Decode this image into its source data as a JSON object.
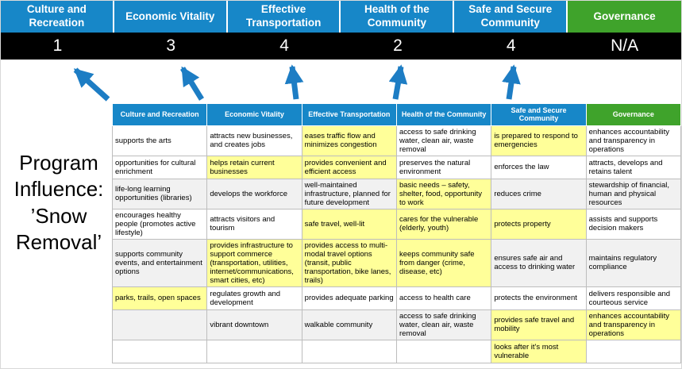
{
  "colors": {
    "blue": "#1787C8",
    "green": "#3FA32B",
    "highlight": "#FFFF99",
    "score_band_bg": "#000000",
    "arrow": "#1D7DC4",
    "cell_border": "#BDBDBD"
  },
  "title": {
    "text": "Program\nInfluence:\n’Snow\nRemoval’"
  },
  "band": {
    "categories": [
      {
        "label": "Culture and Recreation",
        "score": "1",
        "color": "blue"
      },
      {
        "label": "Economic Vitality",
        "score": "3",
        "color": "blue"
      },
      {
        "label": "Effective Transportation",
        "score": "4",
        "color": "blue"
      },
      {
        "label": "Health of the Community",
        "score": "2",
        "color": "blue"
      },
      {
        "label": "Safe and Secure Community",
        "score": "4",
        "color": "blue"
      },
      {
        "label": "Governance",
        "score": "N/A",
        "color": "green"
      }
    ]
  },
  "matrix": {
    "headers": [
      {
        "label": "Culture and Recreation",
        "color": "blue"
      },
      {
        "label": "Economic Vitality",
        "color": "blue"
      },
      {
        "label": "Effective Transportation",
        "color": "blue"
      },
      {
        "label": "Health of the Community",
        "color": "blue"
      },
      {
        "label": "Safe and Secure Community",
        "color": "blue"
      },
      {
        "label": "Governance",
        "color": "green"
      }
    ],
    "rows": [
      [
        {
          "text": "supports the arts",
          "hl": false
        },
        {
          "text": "attracts new businesses, and creates jobs",
          "hl": false
        },
        {
          "text": "eases traffic flow and minimizes congestion",
          "hl": true
        },
        {
          "text": "access to safe drinking water, clean air, waste removal",
          "hl": false
        },
        {
          "text": "is prepared to respond to emergencies",
          "hl": true
        },
        {
          "text": "enhances accountability and transparency in operations",
          "hl": false
        }
      ],
      [
        {
          "text": "opportunities for cultural enrichment",
          "hl": false
        },
        {
          "text": "helps retain current businesses",
          "hl": true
        },
        {
          "text": "provides convenient and efficient access",
          "hl": true
        },
        {
          "text": "preserves the natural environment",
          "hl": false
        },
        {
          "text": "enforces the law",
          "hl": false
        },
        {
          "text": "attracts, develops and retains talent",
          "hl": false
        }
      ],
      [
        {
          "text": "life-long learning opportunities (libraries)",
          "hl": false
        },
        {
          "text": "develops the workforce",
          "hl": false
        },
        {
          "text": "well-maintained infrastructure, planned for future development",
          "hl": false
        },
        {
          "text": "basic needs – safety, shelter, food, opportunity to work",
          "hl": true
        },
        {
          "text": "reduces crime",
          "hl": false
        },
        {
          "text": "stewardship of financial, human and physical resources",
          "hl": false
        }
      ],
      [
        {
          "text": "encourages healthy people (promotes active lifestyle)",
          "hl": false
        },
        {
          "text": "attracts visitors and tourism",
          "hl": false
        },
        {
          "text": "safe travel, well-lit",
          "hl": true
        },
        {
          "text": "cares for the vulnerable (elderly, youth)",
          "hl": true
        },
        {
          "text": "protects property",
          "hl": true
        },
        {
          "text": "assists and supports decision makers",
          "hl": false
        }
      ],
      [
        {
          "text": "supports community events, and entertainment options",
          "hl": false
        },
        {
          "text": "provides infrastructure to support commerce (transportation, utilities, internet/communications, smart cities, etc)",
          "hl": true
        },
        {
          "text": "provides access to multi-modal travel options (transit, public transportation, bike lanes, trails)",
          "hl": true
        },
        {
          "text": "keeps community safe from danger (crime, disease, etc)",
          "hl": true
        },
        {
          "text": "ensures safe air and access to drinking water",
          "hl": false
        },
        {
          "text": "maintains regulatory compliance",
          "hl": false
        }
      ],
      [
        {
          "text": "parks, trails, open spaces",
          "hl": true
        },
        {
          "text": "regulates growth and development",
          "hl": false
        },
        {
          "text": "provides adequate parking",
          "hl": false
        },
        {
          "text": "access to health care",
          "hl": false
        },
        {
          "text": "protects the environment",
          "hl": false
        },
        {
          "text": "delivers responsible and courteous service",
          "hl": false
        }
      ],
      [
        {
          "text": "",
          "hl": false
        },
        {
          "text": "vibrant downtown",
          "hl": false
        },
        {
          "text": "walkable community",
          "hl": false
        },
        {
          "text": "access to safe drinking water, clean air, waste removal",
          "hl": false
        },
        {
          "text": "provides safe travel and mobility",
          "hl": true
        },
        {
          "text": "enhances accountability and transparency in operations",
          "hl": true
        }
      ],
      [
        {
          "text": "",
          "hl": false
        },
        {
          "text": "",
          "hl": false
        },
        {
          "text": "",
          "hl": false
        },
        {
          "text": "",
          "hl": false
        },
        {
          "text": "looks after it's most vulnerable",
          "hl": true
        },
        {
          "text": "",
          "hl": false
        }
      ]
    ]
  }
}
